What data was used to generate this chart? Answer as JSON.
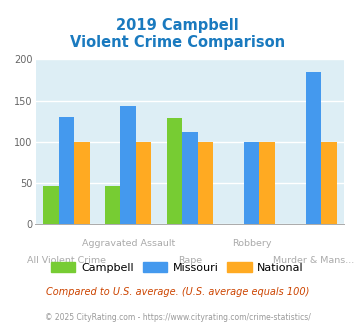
{
  "title_line1": "2019 Campbell",
  "title_line2": "Violent Crime Comparison",
  "title_color": "#1a7abf",
  "categories": [
    "All Violent Crime",
    "Aggravated Assault",
    "Rape",
    "Robbery",
    "Murder & Mans..."
  ],
  "campbell": [
    46,
    46,
    129,
    0,
    0
  ],
  "missouri": [
    130,
    143,
    112,
    100,
    185
  ],
  "national": [
    100,
    100,
    100,
    100,
    100
  ],
  "campbell_color": "#77cc33",
  "missouri_color": "#4499ee",
  "national_color": "#ffaa22",
  "ylim": [
    0,
    200
  ],
  "yticks": [
    0,
    50,
    100,
    150,
    200
  ],
  "bar_width": 0.25,
  "bg_color": "#ddeef5",
  "footer_text1": "Compared to U.S. average. (U.S. average equals 100)",
  "footer_text2": "© 2025 CityRating.com - https://www.cityrating.com/crime-statistics/",
  "footer1_color": "#cc4400",
  "footer2_color": "#999999",
  "grid_color": "#ffffff",
  "legend_labels": [
    "Campbell",
    "Missouri",
    "National"
  ],
  "label_color": "#aaaaaa"
}
